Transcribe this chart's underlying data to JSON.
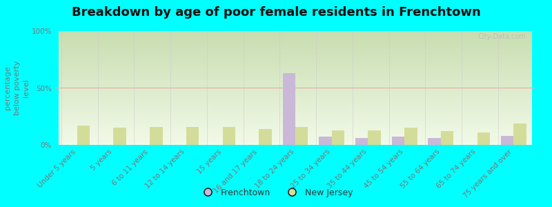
{
  "title": "Breakdown by age of poor female residents in Frenchtown",
  "ylabel": "percentage\nbelow poverty\nlevel",
  "categories": [
    "Under 5 years",
    "5 years",
    "6 to 11 years",
    "12 to 14 years",
    "15 years",
    "16 and 17 years",
    "18 to 24 years",
    "25 to 34 years",
    "35 to 44 years",
    "45 to 54 years",
    "55 to 64 years",
    "65 to 74 years",
    "75 years and over"
  ],
  "frenchtown_values": [
    0,
    0,
    0,
    0,
    0,
    0,
    63,
    7,
    6,
    7,
    6,
    0,
    8
  ],
  "newjersey_values": [
    17,
    15,
    16,
    16,
    16,
    14,
    16,
    13,
    13,
    15,
    12,
    11,
    19
  ],
  "frenchtown_color": "#c9b8d8",
  "newjersey_color": "#d4dc9a",
  "grad_top": "#c8ddb0",
  "grad_bottom": "#f2fae8",
  "plot_bg_color": "#00ffff",
  "bar_width": 0.35,
  "ylim": [
    0,
    100
  ],
  "yticks": [
    0,
    50,
    100
  ],
  "ytick_labels": [
    "0%",
    "50%",
    "100%"
  ],
  "title_fontsize": 13,
  "axis_label_fontsize": 8,
  "tick_fontsize": 7.5,
  "legend_fontsize": 9,
  "watermark": "City-Data.com"
}
